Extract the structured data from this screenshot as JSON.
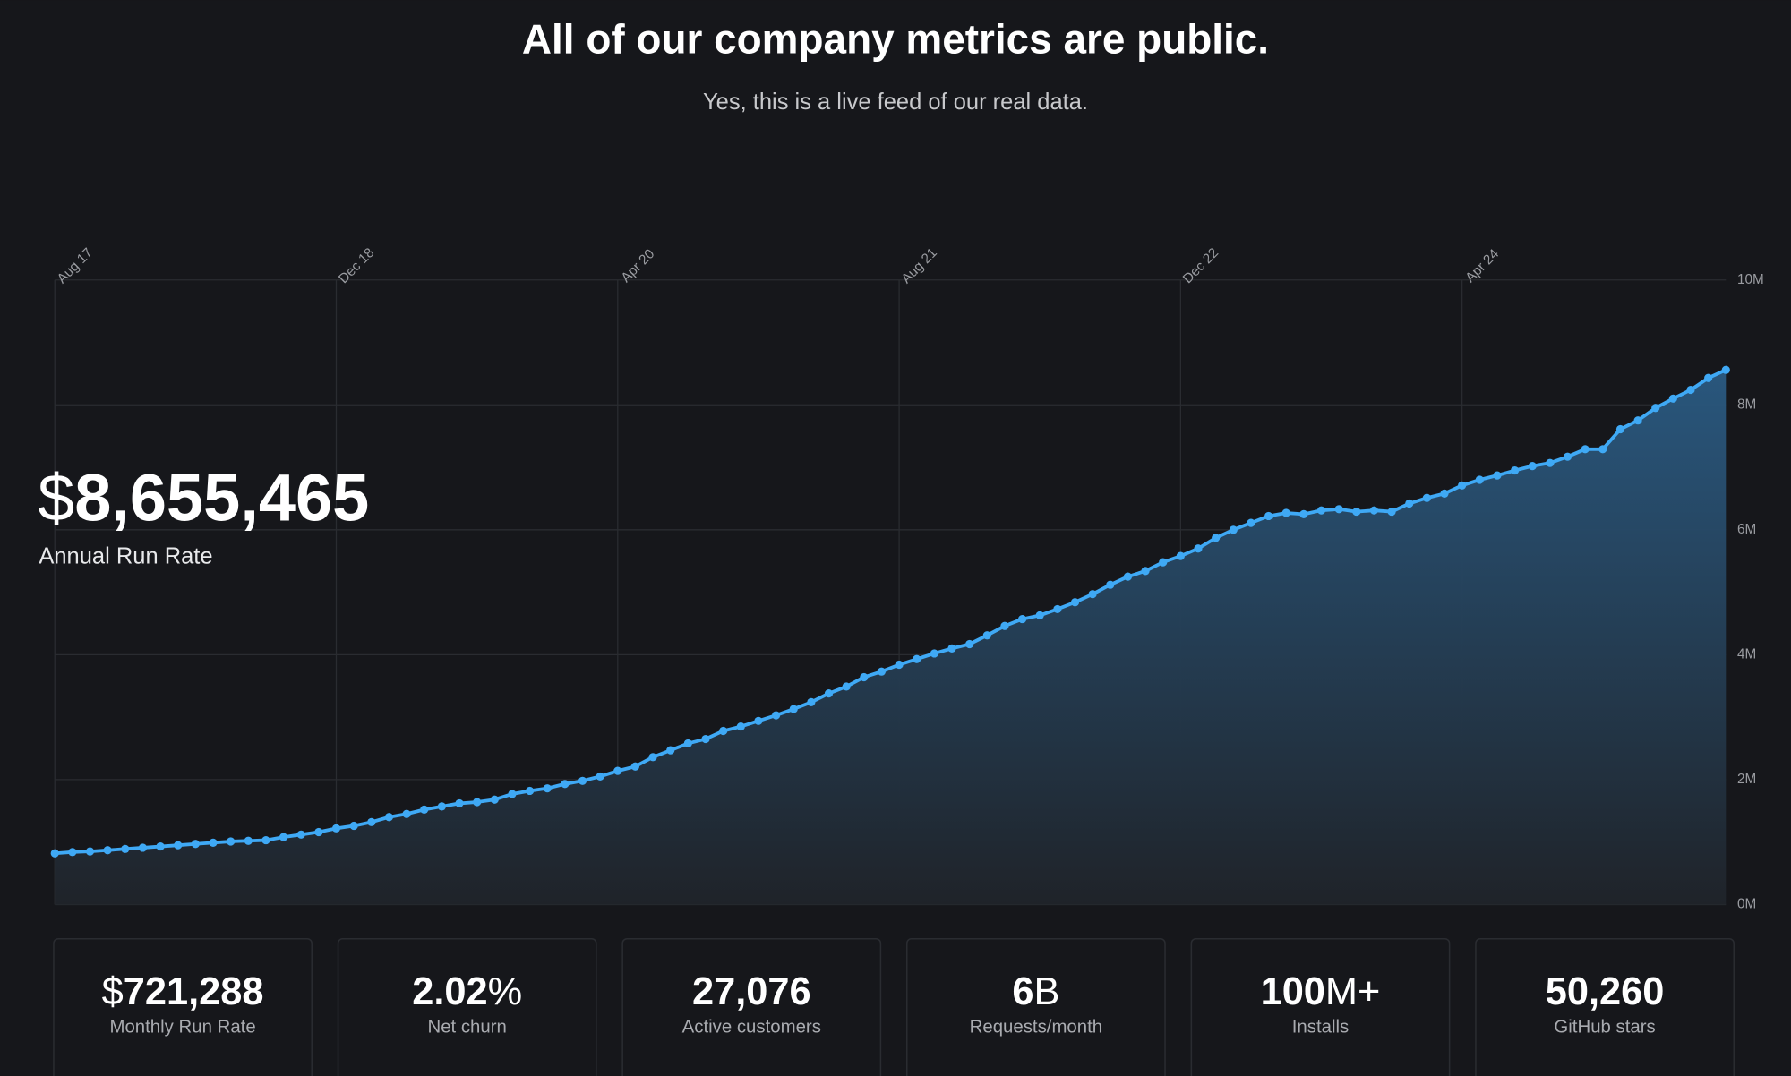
{
  "header": {
    "title": "All of our company metrics are public.",
    "subtitle": "Yes, this is a live feed of our real data."
  },
  "headline": {
    "prefix": "$",
    "number": "8,655,465",
    "label": "Annual Run Rate"
  },
  "chart_data": {
    "type": "line",
    "color": "#3fa9f5",
    "grid": true,
    "categories": [
      "Aug 17",
      null,
      null,
      null,
      null,
      null,
      null,
      null,
      null,
      null,
      null,
      null,
      null,
      null,
      null,
      null,
      "Dec 18",
      null,
      null,
      null,
      null,
      null,
      null,
      null,
      null,
      null,
      null,
      null,
      null,
      null,
      null,
      null,
      "Apr 20",
      null,
      null,
      null,
      null,
      null,
      null,
      null,
      null,
      null,
      null,
      null,
      null,
      null,
      null,
      null,
      "Aug 21",
      null,
      null,
      null,
      null,
      null,
      null,
      null,
      null,
      null,
      null,
      null,
      null,
      null,
      null,
      null,
      "Dec 22",
      null,
      null,
      null,
      null,
      null,
      null,
      null,
      null,
      null,
      null,
      null,
      null,
      null,
      null,
      null,
      "Apr 24",
      null,
      null,
      null,
      null,
      null,
      null,
      null,
      null,
      null,
      null,
      null,
      null,
      null,
      null,
      null
    ],
    "values": [
      0.82,
      0.84,
      0.85,
      0.87,
      0.89,
      0.91,
      0.93,
      0.95,
      0.97,
      0.99,
      1.01,
      1.02,
      1.03,
      1.08,
      1.12,
      1.16,
      1.22,
      1.26,
      1.32,
      1.4,
      1.45,
      1.52,
      1.57,
      1.62,
      1.64,
      1.68,
      1.77,
      1.82,
      1.86,
      1.93,
      1.98,
      2.05,
      2.14,
      2.21,
      2.36,
      2.47,
      2.58,
      2.65,
      2.78,
      2.85,
      2.94,
      3.03,
      3.13,
      3.24,
      3.38,
      3.49,
      3.64,
      3.73,
      3.84,
      3.93,
      4.02,
      4.1,
      4.17,
      4.31,
      4.46,
      4.57,
      4.63,
      4.73,
      4.84,
      4.97,
      5.12,
      5.25,
      5.34,
      5.48,
      5.58,
      5.7,
      5.87,
      6.0,
      6.11,
      6.22,
      6.27,
      6.25,
      6.31,
      6.33,
      6.29,
      6.31,
      6.29,
      6.42,
      6.51,
      6.58,
      6.71,
      6.8,
      6.87,
      6.95,
      7.02,
      7.07,
      7.17,
      7.29,
      7.29,
      7.61,
      7.75,
      7.95,
      8.1,
      8.24,
      8.43,
      8.56
    ],
    "ylim": [
      0,
      10
    ],
    "yticks": [
      {
        "value": 0,
        "label": "0M"
      },
      {
        "value": 2,
        "label": "2M"
      },
      {
        "value": 4,
        "label": "4M"
      },
      {
        "value": 6,
        "label": "6M"
      },
      {
        "value": 8,
        "label": "8M"
      },
      {
        "value": 10,
        "label": "10M"
      }
    ]
  },
  "cards": [
    {
      "prefix": "$",
      "number": "721,288",
      "label": "Monthly Run Rate"
    },
    {
      "number": "2.02",
      "suffix": "%",
      "label": "Net churn"
    },
    {
      "number": "27,076",
      "label": "Active customers"
    },
    {
      "number": "6",
      "suffix": "B",
      "label": "Requests/month"
    },
    {
      "number": "100",
      "suffix": "M+",
      "label": "Installs"
    },
    {
      "number": "50,260",
      "label": "GitHub stars"
    }
  ]
}
